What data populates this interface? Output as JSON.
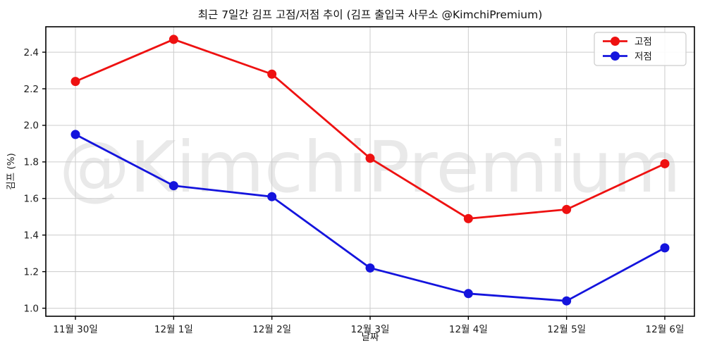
{
  "figure": {
    "title": "최근 7일간 김프 고점/저점 추이 (김프 출입국 사무소 @KimchiPremium)",
    "watermark": "@KimchiPremium"
  },
  "chart_data": {
    "type": "line",
    "title": "최근 7일간 김프 고점/저점 추이 (김프 출입국 사무소 @KimchiPremium)",
    "xlabel": "날짜",
    "ylabel": "김프 (%)",
    "categories": [
      "11월 30일",
      "12월 1일",
      "12월 2일",
      "12월 3일",
      "12월 4일",
      "12월 5일",
      "12월 6일"
    ],
    "series": [
      {
        "name": "고점",
        "color": "#ee1111",
        "marker": "circle",
        "values": [
          2.24,
          2.47,
          2.28,
          1.82,
          1.49,
          1.54,
          1.79
        ]
      },
      {
        "name": "저점",
        "color": "#1414dd",
        "marker": "circle",
        "values": [
          1.95,
          1.67,
          1.61,
          1.22,
          1.08,
          1.04,
          1.33
        ]
      }
    ],
    "yticks": [
      1.0,
      1.2,
      1.4,
      1.6,
      1.8,
      2.0,
      2.2,
      2.4
    ],
    "ylim": [
      0.956,
      2.539
    ],
    "grid": true,
    "legend_position": "top-right",
    "legend_labels": [
      "고점",
      "저점"
    ],
    "watermark": "@KimchiPremium",
    "colors": {
      "grid": "#cccccc",
      "spine": "#000000",
      "tick_label": "#1a1a1a",
      "title": "#111111",
      "watermark": "#e9e9e9",
      "background": "#ffffff",
      "legend_border": "#cccccc",
      "legend_bg": "#ffffff"
    }
  }
}
